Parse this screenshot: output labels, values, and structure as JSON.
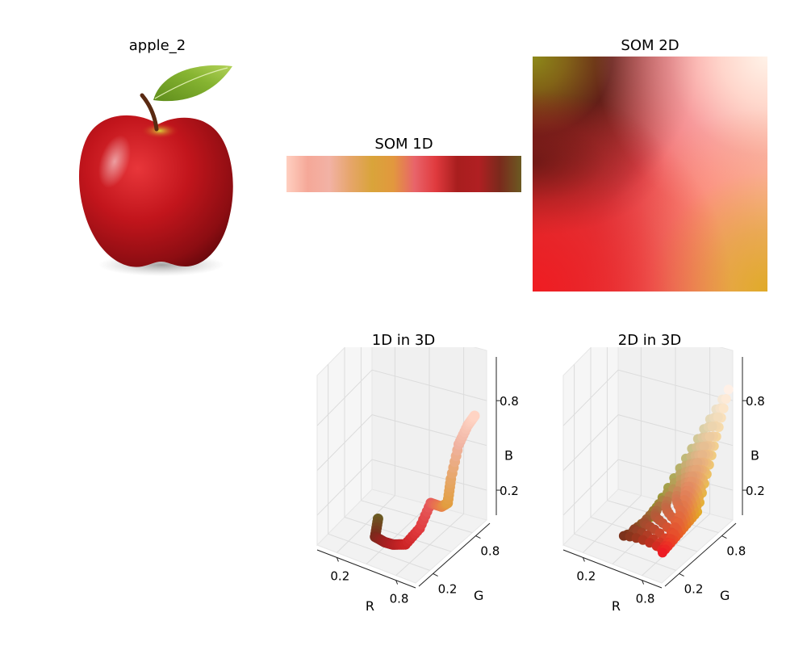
{
  "chart_data": [
    {
      "type": "image",
      "title": "apple_2",
      "depicts": "red apple with green leaf and stem"
    },
    {
      "type": "heatmap",
      "title": "SOM 1D",
      "orientation": "horizontal strip",
      "color_stops": [
        "#ffcfc0",
        "#f5a898",
        "#f2b2a5",
        "#e6a56a",
        "#d9a43a",
        "#e2983e",
        "#e8646a",
        "#e03a3e",
        "#a81e1e",
        "#b01f22",
        "#7a2a1c",
        "#6b5a22"
      ]
    },
    {
      "type": "heatmap",
      "title": "SOM 2D",
      "corner_colors": {
        "top-left": "#8a8a1c",
        "top-right": "#fff0e6",
        "bottom-left": "#ee1c24",
        "bottom-right": "#e2ab2a"
      }
    },
    {
      "type": "scatter3d",
      "title": "1D in 3D",
      "xlabel": "R",
      "ylabel": "G",
      "zlabel": "B",
      "xticks": [
        "0.2",
        "0.8"
      ],
      "yticks": [
        "0.2",
        "0.8"
      ],
      "zticks": [
        "0.2",
        "0.8"
      ],
      "xlim": [
        0,
        1
      ],
      "ylim": [
        0,
        1
      ],
      "zlim": [
        0,
        1
      ],
      "points": [
        {
          "r": 0.4,
          "g": 0.35,
          "b": 0.14,
          "color": "#6b5a22"
        },
        {
          "r": 0.48,
          "g": 0.17,
          "b": 0.11,
          "color": "#7a2a1c"
        },
        {
          "r": 0.6,
          "g": 0.13,
          "b": 0.12,
          "color": "#9c2020"
        },
        {
          "r": 0.69,
          "g": 0.12,
          "b": 0.13,
          "color": "#b01f22"
        },
        {
          "r": 0.8,
          "g": 0.14,
          "b": 0.15,
          "color": "#cc2426"
        },
        {
          "r": 0.88,
          "g": 0.23,
          "b": 0.24,
          "color": "#e03a3e"
        },
        {
          "r": 0.9,
          "g": 0.36,
          "b": 0.36,
          "color": "#e65c5c"
        },
        {
          "r": 0.91,
          "g": 0.5,
          "b": 0.28,
          "color": "#e88048"
        },
        {
          "r": 0.89,
          "g": 0.62,
          "b": 0.25,
          "color": "#e29e40"
        },
        {
          "r": 0.9,
          "g": 0.65,
          "b": 0.4,
          "color": "#e6a666"
        },
        {
          "r": 0.94,
          "g": 0.7,
          "b": 0.62,
          "color": "#f0b2a0"
        },
        {
          "r": 0.97,
          "g": 0.78,
          "b": 0.72,
          "color": "#f8c6b6"
        },
        {
          "r": 1.0,
          "g": 0.83,
          "b": 0.77,
          "color": "#ffd4c4"
        }
      ]
    },
    {
      "type": "scatter3d",
      "title": "2D in 3D",
      "xlabel": "R",
      "ylabel": "G",
      "zlabel": "B",
      "xticks": [
        "0.2",
        "0.8"
      ],
      "yticks": [
        "0.2",
        "0.8"
      ],
      "zticks": [
        "0.2",
        "0.8"
      ],
      "xlim": [
        0,
        1
      ],
      "ylim": [
        0,
        1
      ],
      "zlim": [
        0,
        1
      ],
      "grid_corners": {
        "top-left": {
          "r": 0.54,
          "g": 0.54,
          "b": 0.11
        },
        "top-right": {
          "r": 1.0,
          "g": 0.94,
          "b": 0.9
        },
        "bottom-left": {
          "r": 0.93,
          "g": 0.11,
          "b": 0.14
        },
        "bottom-right": {
          "r": 0.89,
          "g": 0.67,
          "b": 0.17
        },
        "mid-left": {
          "r": 0.38,
          "g": 0.13,
          "b": 0.1
        },
        "center": {
          "r": 0.98,
          "g": 0.45,
          "b": 0.45
        }
      }
    }
  ]
}
